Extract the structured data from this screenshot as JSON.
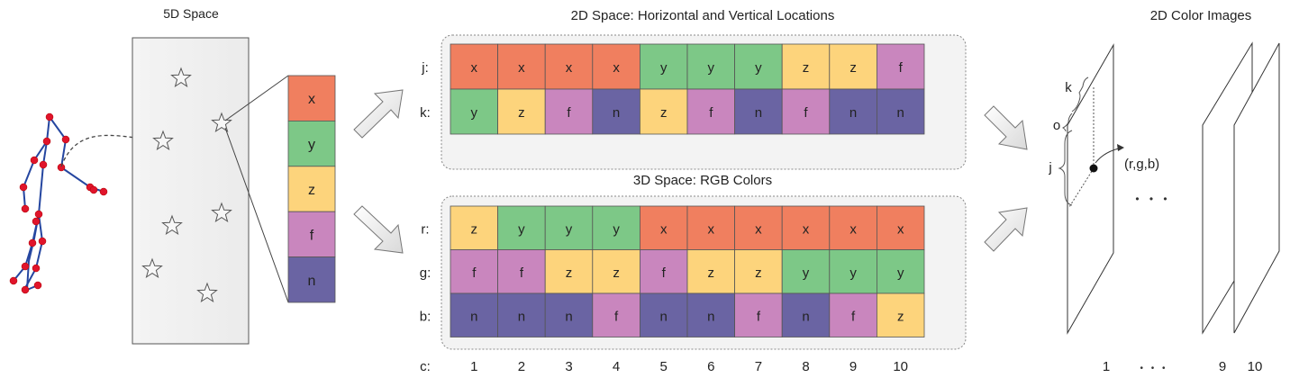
{
  "titles": {
    "five_d": "5D Space",
    "two_d_hv": "2D Space: Horizontal and Vertical Locations",
    "three_d_rgb": "3D Space: RGB Colors",
    "color_images": "2D Color Images"
  },
  "colors": {
    "x": "#f07f5f",
    "y": "#7dc887",
    "z": "#fdd47c",
    "f": "#c986be",
    "n": "#6a64a3"
  },
  "stack": [
    "x",
    "y",
    "z",
    "f",
    "n"
  ],
  "hv_rows": [
    {
      "label": "j:",
      "cells": [
        "x",
        "x",
        "x",
        "x",
        "y",
        "y",
        "y",
        "z",
        "z",
        "f"
      ]
    },
    {
      "label": "k:",
      "cells": [
        "y",
        "z",
        "f",
        "n",
        "z",
        "f",
        "n",
        "f",
        "n",
        "n"
      ]
    }
  ],
  "rgb_rows": [
    {
      "label": "r:",
      "cells": [
        "z",
        "y",
        "y",
        "y",
        "x",
        "x",
        "x",
        "x",
        "x",
        "x"
      ]
    },
    {
      "label": "g:",
      "cells": [
        "f",
        "f",
        "z",
        "z",
        "f",
        "z",
        "z",
        "y",
        "y",
        "y"
      ]
    },
    {
      "label": "b:",
      "cells": [
        "n",
        "n",
        "n",
        "f",
        "n",
        "n",
        "f",
        "n",
        "f",
        "z"
      ]
    }
  ],
  "columns": {
    "label": "c:",
    "values": [
      "1",
      "2",
      "3",
      "4",
      "5",
      "6",
      "7",
      "8",
      "9",
      "10"
    ]
  },
  "image_labels": {
    "k": "k",
    "o": "o",
    "j": "j",
    "pixel": "(r,g,b)",
    "dots_mid": "• • •",
    "index_first": "1",
    "index_dots": "• • •",
    "index_nine": "9",
    "index_ten": "10"
  }
}
